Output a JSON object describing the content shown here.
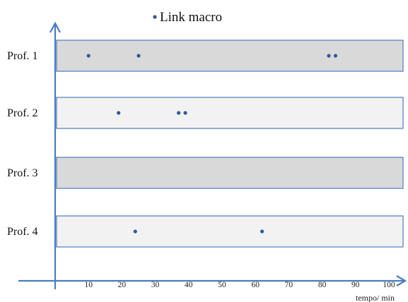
{
  "chart_data": {
    "type": "scatter",
    "title": "",
    "legend": {
      "placement": "top",
      "entries": [
        {
          "label": "Link macro",
          "color": "#2e5a9a"
        }
      ]
    },
    "xlabel": "tempo/ min",
    "xlim": [
      0,
      100
    ],
    "x_ticks": [
      10,
      20,
      30,
      40,
      50,
      60,
      70,
      80,
      90,
      100
    ],
    "rows": [
      {
        "label": "Prof. 1",
        "fill": "#d9d9d9",
        "points": [
          10,
          25,
          82,
          84
        ]
      },
      {
        "label": "Prof. 2",
        "fill": "#f2f2f2",
        "points": [
          19,
          37,
          39
        ]
      },
      {
        "label": "Prof. 3",
        "fill": "#d9d9d9",
        "points": []
      },
      {
        "label": "Prof. 4",
        "fill": "#f2f2f2",
        "points": [
          24,
          62
        ]
      }
    ],
    "colors": {
      "axis": "#4a7cc0",
      "band_border": "#4a7cc0",
      "point": "#2e5a9a"
    },
    "grid": false
  }
}
